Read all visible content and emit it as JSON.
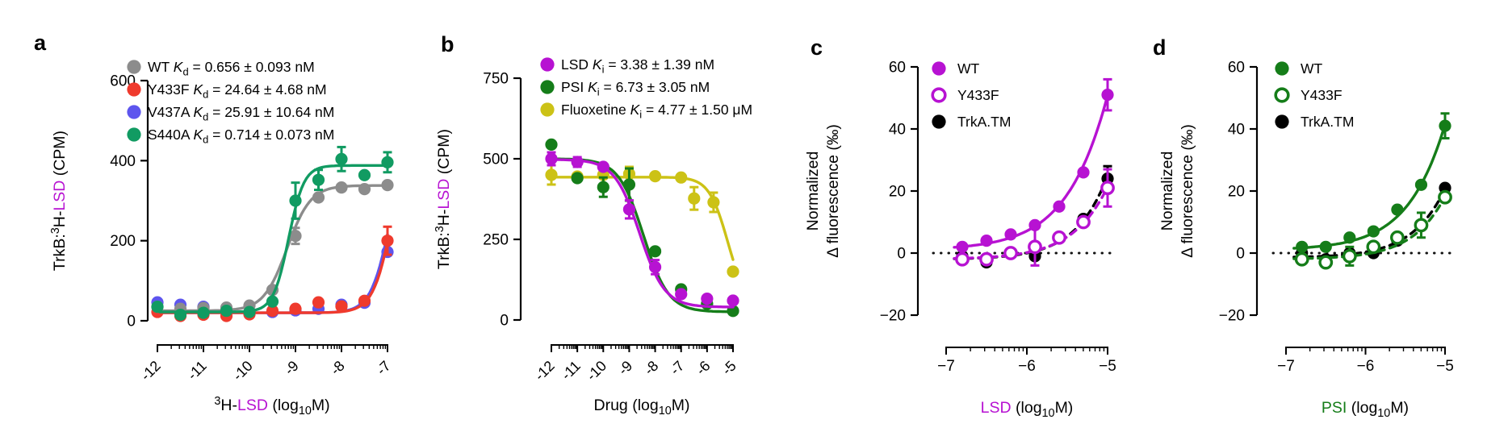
{
  "figure_background": "#ffffff",
  "colors": {
    "gray": "#8c8c8c",
    "red": "#ef3a2d",
    "blue": "#5d55ee",
    "jade": "#119b62",
    "magenta": "#b712d2",
    "dark_green": "#157d19",
    "olive": "#ccc216",
    "black": "#000000"
  },
  "chart_data": [
    {
      "panel_label": "a",
      "type": "scatter",
      "x_range": [
        -12,
        -7
      ],
      "x_ticks": [
        -12,
        -11,
        -10,
        -9,
        -8,
        -7
      ],
      "x_tick_labels": [
        "-12",
        "-11",
        "-10",
        "-9",
        "-8",
        "-7"
      ],
      "y_range": [
        0,
        600
      ],
      "y_ticks": [
        0,
        200,
        400,
        600
      ],
      "y_tick_labels": [
        "0",
        "200",
        "400",
        "600"
      ],
      "xlabel_parts": [
        {
          "t": "3",
          "sup": true
        },
        {
          "t": "H-"
        },
        {
          "t": "LSD",
          "color": "#b712d2"
        },
        {
          "t": " (log"
        },
        {
          "t": "10",
          "sub": true
        },
        {
          "t": "M)"
        }
      ],
      "ylabel_parts": [
        {
          "t": "TrkB:"
        },
        {
          "t": "3",
          "sup": true
        },
        {
          "t": "H-"
        },
        {
          "t": "LSD",
          "color": "#b712d2"
        },
        {
          "t": " (CPM)"
        }
      ],
      "legend": [
        {
          "marker": "filled",
          "color": "#8c8c8c",
          "parts": [
            {
              "t": "WT "
            },
            {
              "t": "K",
              "i": true
            },
            {
              "t": "d",
              "sub": true
            },
            {
              "t": " = 0.656 ± 0.093 nM"
            }
          ]
        },
        {
          "marker": "filled",
          "color": "#ef3a2d",
          "parts": [
            {
              "t": "Y433F "
            },
            {
              "t": "K",
              "i": true
            },
            {
              "t": "d",
              "sub": true
            },
            {
              "t": " = 24.64 ± 4.68 nM"
            }
          ]
        },
        {
          "marker": "filled",
          "color": "#5d55ee",
          "parts": [
            {
              "t": "V437A "
            },
            {
              "t": "K",
              "i": true
            },
            {
              "t": "d",
              "sub": true
            },
            {
              "t": " = 25.91 ± 10.64 nM"
            }
          ]
        },
        {
          "marker": "filled",
          "color": "#119b62",
          "parts": [
            {
              "t": "S440A "
            },
            {
              "t": "K",
              "i": true
            },
            {
              "t": "d",
              "sub": true
            },
            {
              "t": " = 0.714 ± 0.073 nM"
            }
          ]
        }
      ],
      "series": [
        {
          "name": "V437A",
          "color": "#5d55ee",
          "marker": "filled",
          "line": "solid",
          "x": [
            -12,
            -11.5,
            -11,
            -10.5,
            -10,
            -9.5,
            -9,
            -8.5,
            -8,
            -7.5,
            -7
          ],
          "y": [
            46,
            40,
            35,
            25,
            18,
            22,
            26,
            30,
            40,
            45,
            172
          ],
          "yerr": [
            0,
            0,
            0,
            0,
            0,
            0,
            0,
            0,
            0,
            0,
            0
          ],
          "fit": {
            "bottom": 20,
            "top": 500,
            "logec50": -6.92,
            "hill": 2.0,
            "range": [
              -11.95,
              -7.0
            ]
          }
        },
        {
          "name": "Y433F",
          "color": "#ef3a2d",
          "marker": "filled",
          "line": "solid",
          "x": [
            -12,
            -11.5,
            -11,
            -10.5,
            -10,
            -9.5,
            -9,
            -8.5,
            -8,
            -7.5,
            -7
          ],
          "y": [
            22,
            12,
            15,
            12,
            16,
            25,
            30,
            46,
            36,
            50,
            200
          ],
          "yerr": [
            0,
            0,
            0,
            0,
            0,
            0,
            0,
            0,
            0,
            0,
            35
          ],
          "fit": {
            "bottom": 20,
            "top": 550,
            "logec50": -6.85,
            "hill": 2.0,
            "range": [
              -11.95,
              -7.0
            ]
          }
        },
        {
          "name": "WT",
          "color": "#8c8c8c",
          "marker": "filled",
          "line": "solid",
          "x": [
            -12,
            -11.5,
            -11,
            -10.5,
            -10,
            -9.5,
            -9,
            -8.5,
            -8,
            -7.5,
            -7
          ],
          "y": [
            35,
            30,
            32,
            33,
            38,
            77,
            212,
            308,
            333,
            329,
            339
          ],
          "yerr": [
            0,
            0,
            0,
            0,
            0,
            0,
            20,
            0,
            0,
            0,
            0
          ],
          "fit": {
            "bottom": 25,
            "top": 338,
            "logec50": -9.18,
            "hill": 1.7,
            "range": [
              -11.95,
              -7.0
            ]
          }
        },
        {
          "name": "S440A",
          "color": "#119b62",
          "marker": "filled",
          "line": "solid",
          "x": [
            -12,
            -11.5,
            -11,
            -10.5,
            -10,
            -9.5,
            -9,
            -8.5,
            -8,
            -7.5,
            -7
          ],
          "y": [
            35,
            15,
            20,
            25,
            22,
            48,
            300,
            352,
            404,
            364,
            396
          ],
          "yerr": [
            0,
            0,
            0,
            0,
            0,
            0,
            45,
            25,
            30,
            0,
            25
          ],
          "fit": {
            "bottom": 22,
            "top": 388,
            "logec50": -9.15,
            "hill": 2.6,
            "range": [
              -11.95,
              -7.0
            ]
          }
        }
      ]
    },
    {
      "panel_label": "b",
      "type": "scatter",
      "x_range": [
        -12,
        -5
      ],
      "x_ticks": [
        -12,
        -11,
        -10,
        -9,
        -8,
        -7,
        -6,
        -5
      ],
      "x_tick_labels": [
        "-12",
        "-11",
        "-10",
        "-9",
        "-8",
        "-7",
        "-6",
        "-5"
      ],
      "y_range": [
        0,
        750
      ],
      "y_ticks": [
        0,
        250,
        500,
        750
      ],
      "y_tick_labels": [
        "0",
        "250",
        "500",
        "750"
      ],
      "xlabel_parts": [
        {
          "t": "Drug (log"
        },
        {
          "t": "10",
          "sub": true
        },
        {
          "t": "M)"
        }
      ],
      "ylabel_parts": [
        {
          "t": "TrkB:"
        },
        {
          "t": "3",
          "sup": true
        },
        {
          "t": "H-"
        },
        {
          "t": "LSD",
          "color": "#b712d2"
        },
        {
          "t": " (CPM)"
        }
      ],
      "legend": [
        {
          "marker": "filled",
          "color": "#b712d2",
          "parts": [
            {
              "t": "LSD "
            },
            {
              "t": "K",
              "i": true
            },
            {
              "t": "i",
              "sub": true
            },
            {
              "t": " = 3.38 ± 1.39 nM"
            }
          ]
        },
        {
          "marker": "filled",
          "color": "#157d19",
          "parts": [
            {
              "t": "PSI "
            },
            {
              "t": "K",
              "i": true
            },
            {
              "t": "i",
              "sub": true
            },
            {
              "t": " = 6.73 ± 3.05 nM"
            }
          ]
        },
        {
          "marker": "filled",
          "color": "#ccc216",
          "parts": [
            {
              "t": "Fluoxetine "
            },
            {
              "t": "K",
              "i": true
            },
            {
              "t": "i",
              "sub": true
            },
            {
              "t": " = 4.77 ± 1.50 μM"
            }
          ]
        }
      ],
      "series": [
        {
          "name": "Fluoxetine",
          "color": "#ccc216",
          "marker": "filled",
          "line": "solid",
          "x": [
            -12,
            -11,
            -10,
            -9,
            -8,
            -7,
            -6.5,
            -5.75,
            -5
          ],
          "y": [
            450,
            445,
            450,
            453,
            446,
            442,
            377,
            365,
            150
          ],
          "yerr": [
            30,
            0,
            0,
            22,
            0,
            0,
            35,
            30,
            0
          ],
          "fit": {
            "bottom": 40,
            "top": 443,
            "logec50": -5.2,
            "hill": -1.2,
            "range": [
              -12.0,
              -5.0
            ]
          }
        },
        {
          "name": "PSI",
          "color": "#157d19",
          "marker": "filled",
          "line": "solid",
          "x": [
            -12,
            -11,
            -10,
            -9,
            -8,
            -7,
            -6,
            -5
          ],
          "y": [
            544,
            440,
            412,
            420,
            213,
            95,
            50,
            28
          ],
          "yerr": [
            0,
            0,
            30,
            50,
            0,
            0,
            0,
            0
          ],
          "fit": {
            "bottom": 25,
            "top": 500,
            "logec50": -8.45,
            "hill": -0.9,
            "range": [
              -12.0,
              -5.0
            ]
          }
        },
        {
          "name": "LSD",
          "color": "#b712d2",
          "marker": "filled",
          "line": "solid",
          "x": [
            -12,
            -11,
            -10,
            -9,
            -8,
            -7,
            -6,
            -5
          ],
          "y": [
            500,
            490,
            475,
            343,
            164,
            80,
            66,
            60
          ],
          "yerr": [
            20,
            15,
            0,
            28,
            22,
            0,
            0,
            0
          ],
          "fit": {
            "bottom": 40,
            "top": 498,
            "logec50": -8.6,
            "hill": -0.9,
            "range": [
              -12.0,
              -5.0
            ]
          }
        }
      ]
    },
    {
      "panel_label": "c",
      "type": "scatter",
      "x_range": [
        -7,
        -5
      ],
      "x_ticks": [
        -7,
        -6,
        -5
      ],
      "x_tick_labels": [
        "−7",
        "−6",
        "−5"
      ],
      "y_range": [
        -20,
        60
      ],
      "y_ticks": [
        -20,
        0,
        20,
        40,
        60
      ],
      "y_tick_labels": [
        "−20",
        "0",
        "20",
        "40",
        "60"
      ],
      "zero_line": true,
      "xlabel_parts": [
        {
          "t": "LSD",
          "color": "#b712d2"
        },
        {
          "t": " (log"
        },
        {
          "t": "10",
          "sub": true
        },
        {
          "t": "M)"
        }
      ],
      "ylabel_lines": [
        "Normalized",
        "Δ fluorescence (‰)"
      ],
      "legend": [
        {
          "marker": "filled",
          "color": "#b712d2",
          "parts": [
            {
              "t": "WT"
            }
          ]
        },
        {
          "marker": "open",
          "color": "#b712d2",
          "parts": [
            {
              "t": "Y433F"
            }
          ]
        },
        {
          "marker": "filled",
          "color": "#000000",
          "parts": [
            {
              "t": "TrkA.TM"
            }
          ]
        }
      ],
      "series": [
        {
          "name": "TrkA.TM",
          "color": "#000000",
          "marker": "filled",
          "line": "dashed",
          "x": [
            -6.8,
            -6.5,
            -6.2,
            -5.9,
            -5.6,
            -5.3,
            -5.0
          ],
          "y": [
            -1,
            -3,
            0,
            -1,
            5,
            11,
            24
          ],
          "yerr": [
            0,
            0,
            0,
            0,
            0,
            0,
            4
          ],
          "fit": {
            "bottom": -2,
            "top": 520,
            "logec50": -3.9,
            "hill": 1.15,
            "range": [
              -6.9,
              -5.0
            ]
          }
        },
        {
          "name": "Y433F",
          "color": "#b712d2",
          "marker": "open",
          "line": "dashed",
          "x": [
            -6.8,
            -6.5,
            -6.2,
            -5.9,
            -5.6,
            -5.3,
            -5.0
          ],
          "y": [
            -2,
            -2,
            0,
            2,
            5,
            10,
            21
          ],
          "yerr": [
            0,
            0,
            0,
            6,
            0,
            0,
            6
          ],
          "fit": {
            "bottom": -2,
            "top": 502,
            "logec50": -3.75,
            "hill": 1.05,
            "range": [
              -6.9,
              -5.0
            ]
          }
        },
        {
          "name": "WT",
          "color": "#b712d2",
          "marker": "filled",
          "line": "solid",
          "x": [
            -6.8,
            -6.5,
            -6.2,
            -5.9,
            -5.6,
            -5.3,
            -5.0
          ],
          "y": [
            2,
            4,
            6,
            9,
            15,
            26,
            51
          ],
          "yerr": [
            0,
            0,
            0,
            0,
            0,
            0,
            5
          ],
          "fit": {
            "bottom": 1,
            "top": 495,
            "logec50": -4.0,
            "hill": 0.95,
            "range": [
              -6.9,
              -5.0
            ]
          }
        }
      ]
    },
    {
      "panel_label": "d",
      "type": "scatter",
      "x_range": [
        -7,
        -5
      ],
      "x_ticks": [
        -7,
        -6,
        -5
      ],
      "x_tick_labels": [
        "−7",
        "−6",
        "−5"
      ],
      "y_range": [
        -20,
        60
      ],
      "y_ticks": [
        -20,
        0,
        20,
        40,
        60
      ],
      "y_tick_labels": [
        "−20",
        "0",
        "20",
        "40",
        "60"
      ],
      "zero_line": true,
      "xlabel_parts": [
        {
          "t": "PSI",
          "color": "#157d19"
        },
        {
          "t": " (log"
        },
        {
          "t": "10",
          "sub": true
        },
        {
          "t": "M)"
        }
      ],
      "ylabel_lines": [
        "Normalized",
        "Δ fluorescence (‰)"
      ],
      "legend": [
        {
          "marker": "filled",
          "color": "#157d19",
          "parts": [
            {
              "t": "WT"
            }
          ]
        },
        {
          "marker": "open",
          "color": "#157d19",
          "parts": [
            {
              "t": "Y433F"
            }
          ]
        },
        {
          "marker": "filled",
          "color": "#000000",
          "parts": [
            {
              "t": "TrkA.TM"
            }
          ]
        }
      ],
      "series": [
        {
          "name": "TrkA.TM",
          "color": "#000000",
          "marker": "filled",
          "line": "dashed",
          "x": [
            -6.8,
            -6.5,
            -6.2,
            -5.9,
            -5.6,
            -5.3,
            -5.0
          ],
          "y": [
            0,
            -2,
            0,
            0,
            4,
            9,
            21
          ],
          "yerr": [
            0,
            0,
            0,
            0,
            0,
            0,
            0
          ],
          "fit": {
            "bottom": -1.5,
            "top": 430,
            "logec50": -3.85,
            "hill": 1.1,
            "range": [
              -6.9,
              -5.0
            ]
          }
        },
        {
          "name": "Y433F",
          "color": "#157d19",
          "marker": "open",
          "line": "dashed",
          "x": [
            -6.8,
            -6.5,
            -6.2,
            -5.9,
            -5.6,
            -5.3,
            -5.0
          ],
          "y": [
            -2,
            -3,
            -1,
            2,
            5,
            9,
            18
          ],
          "yerr": [
            0,
            0,
            3,
            0,
            0,
            4,
            0
          ],
          "fit": {
            "bottom": -2,
            "top": 500,
            "logec50": -3.75,
            "hill": 1.1,
            "range": [
              -6.9,
              -5.0
            ]
          }
        },
        {
          "name": "WT",
          "color": "#157d19",
          "marker": "filled",
          "line": "solid",
          "x": [
            -6.8,
            -6.5,
            -6.2,
            -5.9,
            -5.6,
            -5.3,
            -5.0
          ],
          "y": [
            2,
            2,
            5,
            7,
            14,
            22,
            41
          ],
          "yerr": [
            0,
            0,
            0,
            0,
            0,
            0,
            4
          ],
          "fit": {
            "bottom": 1,
            "top": 495,
            "logec50": -3.95,
            "hill": 1.0,
            "range": [
              -6.9,
              -5.0
            ]
          }
        }
      ]
    }
  ]
}
